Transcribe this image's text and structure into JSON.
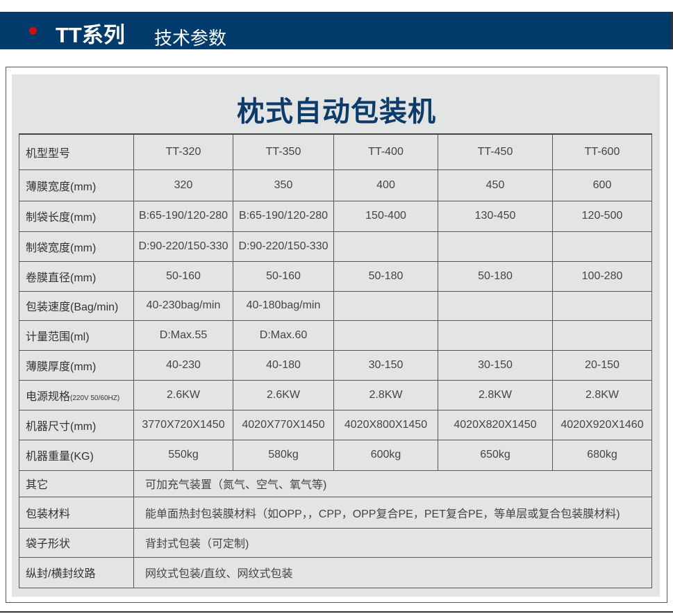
{
  "header": {
    "series": "TT系列",
    "subtitle": "技术参数",
    "accent": "#d01010",
    "bar_color": "#003b6c"
  },
  "title": "枕式自动包装机",
  "table": {
    "columns": [
      "机型型号",
      "TT-320",
      "TT-350",
      "TT-400",
      "TT-450",
      "TT-600"
    ],
    "rows": [
      {
        "label": "薄膜宽度(mm)",
        "values": [
          "320",
          "350",
          "400",
          "450",
          "600"
        ]
      },
      {
        "label": "制袋长度(mm)",
        "values": [
          "B:65-190/120-280",
          "B:65-190/120-280",
          "150-400",
          "130-450",
          "120-500"
        ]
      },
      {
        "label": "制袋宽度(mm)",
        "values": [
          "D:90-220/150-330",
          "D:90-220/150-330",
          "",
          "",
          ""
        ]
      },
      {
        "label": "卷膜直径(mm)",
        "values": [
          "50-160",
          "50-160",
          "50-180",
          "50-180",
          "100-280"
        ]
      },
      {
        "label": "包装速度(Bag/min)",
        "values": [
          "40-230bag/min",
          "40-180bag/min",
          "",
          "",
          ""
        ]
      },
      {
        "label": "计量范围(ml)",
        "values": [
          "D:Max.55",
          "D:Max.60",
          "",
          "",
          ""
        ]
      },
      {
        "label": "薄膜厚度(mm)",
        "values": [
          "40-230",
          "40-180",
          "30-150",
          "30-150",
          "20-150"
        ]
      },
      {
        "label": "电源规格",
        "label_note": "(220V 50/60HZ)",
        "values": [
          "2.6KW",
          "2.6KW",
          "2.8KW",
          "2.8KW",
          "2.8KW"
        ]
      },
      {
        "label": "机器尺寸(mm)",
        "values": [
          "3770X720X1450",
          "4020X770X1450",
          "4020X800X1450",
          "4020X820X1450",
          "4020X920X1460"
        ]
      },
      {
        "label": "机器重量(KG)",
        "values": [
          "550kg",
          "580kg",
          "600kg",
          "650kg",
          "680kg"
        ]
      }
    ],
    "merged_rows": [
      {
        "label": "其它",
        "value": "可加充气装置（氮气、空气、氧气等)"
      },
      {
        "label": "包装材料",
        "value": "能单面热封包装膜材料（如OPP，，CPP，OPP复合PE，PET复合PE，等单层或复合包装膜材料)"
      },
      {
        "label": "袋子形状",
        "value": "背封式包装（可定制)"
      },
      {
        "label": "纵封/横封纹路",
        "value": "网纹式包装/直纹、网纹式包装"
      }
    ]
  }
}
